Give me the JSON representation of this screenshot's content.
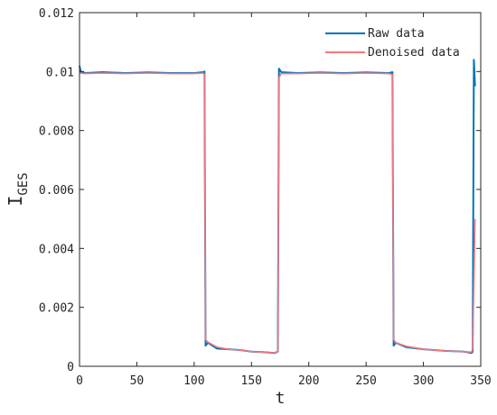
{
  "chart_data": {
    "type": "line",
    "title": "",
    "xlabel": "t",
    "ylabel_main": "I",
    "ylabel_sub": "GES",
    "xlim": [
      0,
      350
    ],
    "ylim": [
      0,
      0.012
    ],
    "x_ticks": [
      0,
      50,
      100,
      150,
      200,
      250,
      300,
      350
    ],
    "x_tick_labels": [
      "0",
      "50",
      "100",
      "150",
      "200",
      "250",
      "300",
      "350"
    ],
    "y_ticks": [
      0,
      0.002,
      0.004,
      0.006,
      0.008,
      0.01,
      0.012
    ],
    "y_tick_labels": [
      "0",
      "0.002",
      "0.004",
      "0.006",
      "0.008",
      "0.01",
      "0.012"
    ],
    "grid": false,
    "legend_position": "top-right",
    "series": [
      {
        "name": "Raw data",
        "color": "#0072BD",
        "points": [
          [
            0,
            0.0102
          ],
          [
            1,
            0.01
          ],
          [
            5,
            0.00995
          ],
          [
            20,
            0.00998
          ],
          [
            40,
            0.00995
          ],
          [
            60,
            0.00997
          ],
          [
            80,
            0.00995
          ],
          [
            100,
            0.00995
          ],
          [
            108,
            0.00998
          ],
          [
            109,
            0.01
          ],
          [
            110,
            0.0007
          ],
          [
            112,
            0.0008
          ],
          [
            120,
            0.0006
          ],
          [
            130,
            0.00058
          ],
          [
            140,
            0.00055
          ],
          [
            150,
            0.0005
          ],
          [
            160,
            0.00048
          ],
          [
            170,
            0.00045
          ],
          [
            173,
            0.0005
          ],
          [
            174,
            0.0101
          ],
          [
            176,
            0.00998
          ],
          [
            190,
            0.00995
          ],
          [
            210,
            0.00997
          ],
          [
            230,
            0.00995
          ],
          [
            250,
            0.00997
          ],
          [
            270,
            0.00995
          ],
          [
            273,
            0.00998
          ],
          [
            274,
            0.0007
          ],
          [
            276,
            0.0008
          ],
          [
            285,
            0.00065
          ],
          [
            300,
            0.00058
          ],
          [
            320,
            0.00052
          ],
          [
            335,
            0.0005
          ],
          [
            342,
            0.00045
          ],
          [
            343,
            0.0005
          ],
          [
            344,
            0.0104
          ],
          [
            345,
            0.0095
          ]
        ]
      },
      {
        "name": "Denoised data",
        "color": "#F4777C",
        "points": [
          [
            0,
            0.00995
          ],
          [
            5,
            0.00993
          ],
          [
            20,
            0.00995
          ],
          [
            40,
            0.00993
          ],
          [
            60,
            0.00995
          ],
          [
            80,
            0.00993
          ],
          [
            100,
            0.00993
          ],
          [
            108,
            0.00995
          ],
          [
            109,
            0.0099
          ],
          [
            110,
            0.0009
          ],
          [
            112,
            0.00082
          ],
          [
            120,
            0.00065
          ],
          [
            130,
            0.00058
          ],
          [
            140,
            0.00055
          ],
          [
            150,
            0.0005
          ],
          [
            160,
            0.00048
          ],
          [
            170,
            0.00046
          ],
          [
            173,
            0.0005
          ],
          [
            174,
            0.0098
          ],
          [
            176,
            0.00993
          ],
          [
            190,
            0.00993
          ],
          [
            210,
            0.00995
          ],
          [
            230,
            0.00993
          ],
          [
            250,
            0.00995
          ],
          [
            270,
            0.00993
          ],
          [
            273,
            0.0099
          ],
          [
            274,
            0.0009
          ],
          [
            276,
            0.0008
          ],
          [
            285,
            0.00068
          ],
          [
            300,
            0.00058
          ],
          [
            320,
            0.00052
          ],
          [
            335,
            0.0005
          ],
          [
            342,
            0.00048
          ],
          [
            343,
            0.0006
          ],
          [
            345,
            0.005
          ]
        ]
      }
    ]
  }
}
